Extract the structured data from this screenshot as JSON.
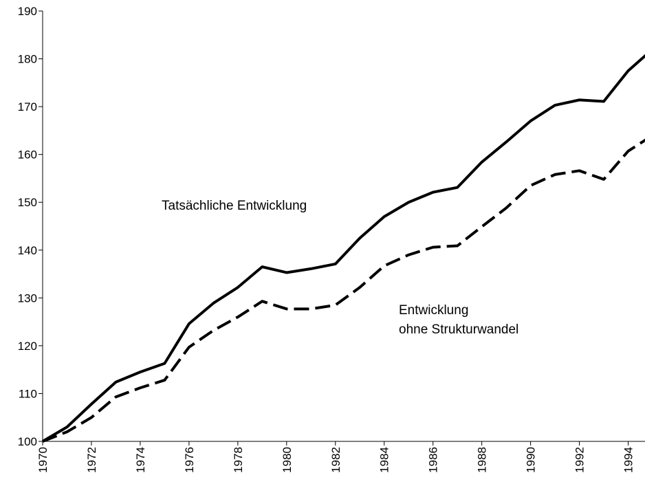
{
  "chart_data": {
    "type": "line",
    "x": [
      1970,
      1971,
      1972,
      1973,
      1974,
      1975,
      1976,
      1977,
      1978,
      1979,
      1980,
      1981,
      1982,
      1983,
      1984,
      1985,
      1986,
      1987,
      1988,
      1989,
      1990,
      1991,
      1992,
      1993,
      1994,
      1995
    ],
    "series": [
      {
        "color": "#000000",
        "dash": false,
        "values": [
          100,
          103,
          107.8,
          112.4,
          114.5,
          116.3,
          124.6,
          128.9,
          132.2,
          136.5,
          135.3,
          136.1,
          137.1,
          142.5,
          147,
          150,
          152.1,
          153.1,
          158.4,
          162.6,
          167,
          170.3,
          171.4,
          171.1,
          177.5,
          182
        ]
      },
      {
        "color": "#000000",
        "dash": true,
        "values": [
          100,
          102,
          105,
          109.3,
          111.2,
          112.8,
          119.7,
          123.2,
          126,
          129.3,
          127.7,
          127.7,
          128.5,
          132.2,
          136.7,
          139,
          140.6,
          140.9,
          144.9,
          148.8,
          153.5,
          155.8,
          156.6,
          154.8,
          160.7,
          164
        ]
      }
    ],
    "annotations": [
      "Tatsächliche Entwicklung",
      "Entwicklung",
      "ohne Strukturwandel"
    ],
    "xlim": [
      1970,
      1995
    ],
    "xticks": [
      1970,
      1972,
      1974,
      1976,
      1978,
      1980,
      1982,
      1984,
      1986,
      1988,
      1990,
      1992,
      1994
    ],
    "ylim": [
      100,
      190
    ],
    "yticks": [
      100,
      110,
      120,
      130,
      140,
      150,
      160,
      170,
      180,
      190
    ]
  }
}
